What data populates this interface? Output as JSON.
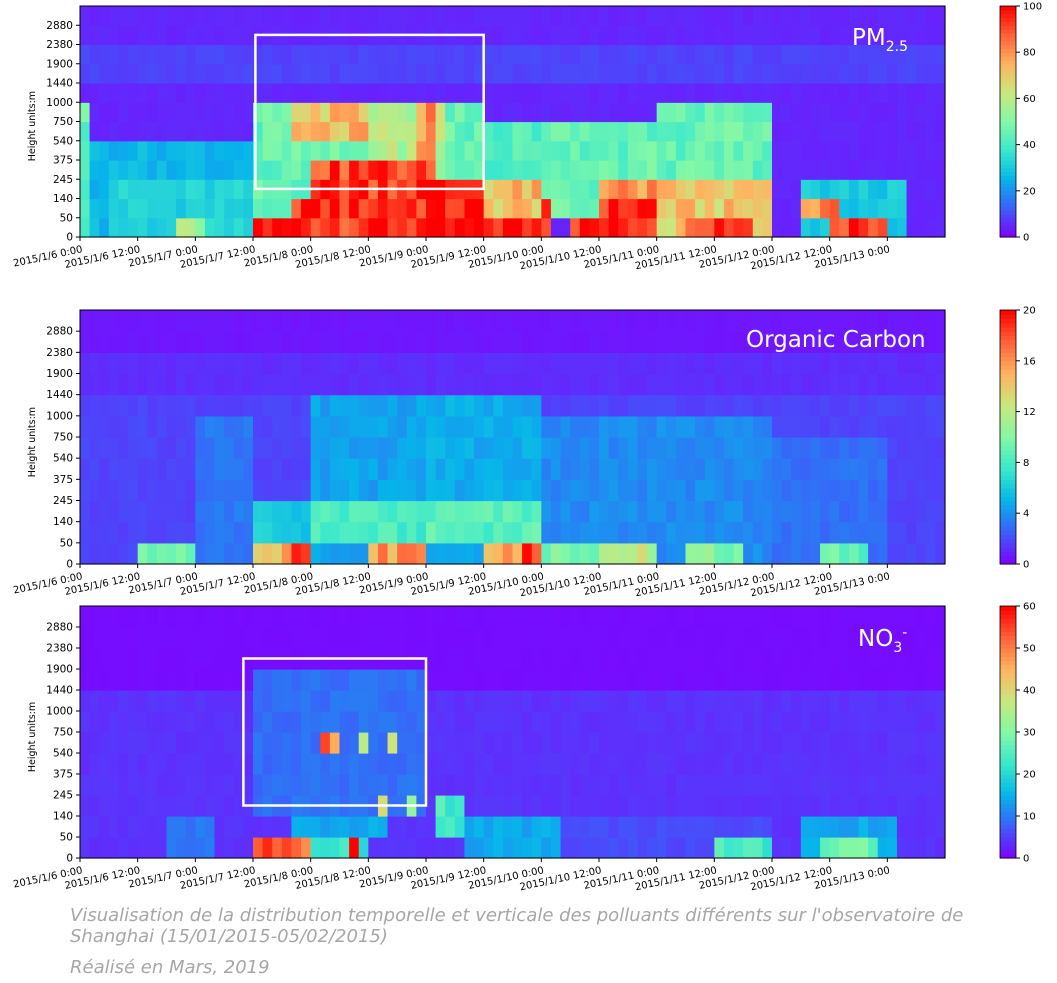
{
  "colors": {
    "colormap": [
      "#7f00ff",
      "#3c5ef9",
      "#07b4ea",
      "#3ae8cc",
      "#84f8a6",
      "#c8e87f",
      "#ffb360",
      "#ff6138",
      "#ff0000"
    ],
    "frame_border": "#000000",
    "highlight_box": "#ffffff",
    "caption": "#a6a6a6"
  },
  "caption": {
    "line1": "Visualisation de la distribution temporelle et verticale des polluants différents sur l'observatoire de Shanghai (15/01/2015-05/02/2015)",
    "line2": "Réalisé en Mars, 2019"
  },
  "chart_data": [
    {
      "type": "heatmap",
      "title": "PM",
      "title_subscript": "2.5",
      "title_superscript": "",
      "ylabel": "Height  units:m",
      "y_levels": [
        "0",
        "50",
        "140",
        "245",
        "375",
        "540",
        "750",
        "1000",
        "1440",
        "1900",
        "2380",
        "2880"
      ],
      "x_ticks": [
        "2015/1/6 0:00",
        "2015/1/6 12:00",
        "2015/1/7 0:00",
        "2015/1/7 12:00",
        "2015/1/8 0:00",
        "2015/1/8 12:00",
        "2015/1/9 0:00",
        "2015/1/9 12:00",
        "2015/1/10 0:00",
        "2015/1/10 12:00",
        "2015/1/11 0:00",
        "2015/1/11 12:00",
        "2015/1/12 0:00",
        "2015/1/12 12:00",
        "2015/1/13 0:00"
      ],
      "x_range": [
        "2015/1/6 0:00",
        "2015/1/13 12:00"
      ],
      "colorbar": {
        "min": 0,
        "max": 100,
        "ticks": [
          0,
          20,
          40,
          60,
          80,
          100
        ]
      },
      "grid": false,
      "highlight_range": {
        "x": [
          "2015/1/7 12:30",
          "2015/1/9 12:00"
        ],
        "y": [
          "140",
          "2380"
        ]
      },
      "background_value": 5,
      "events": [
        {
          "t0": "2015/1/6 0:00",
          "t1": "2015/1/13 12:00",
          "h": [
            8,
            10
          ],
          "v": 9
        },
        {
          "t0": "2015/1/6 0:00",
          "t1": "2015/1/7 12:00",
          "h": [
            0,
            5
          ],
          "v": 26
        },
        {
          "t0": "2015/1/6 0:00",
          "t1": "2015/1/6 2:00",
          "h": [
            0,
            7
          ],
          "v": 45
        },
        {
          "t0": "2015/1/6 6:00",
          "t1": "2015/1/7 12:00",
          "h": [
            0,
            3
          ],
          "v": 32
        },
        {
          "t0": "2015/1/6 20:00",
          "t1": "2015/1/7 2:00",
          "h": [
            0,
            1
          ],
          "v": 55
        },
        {
          "t0": "2015/1/7 12:00",
          "t1": "2015/1/8 0:00",
          "h": [
            0,
            2
          ],
          "v": 40
        },
        {
          "t0": "2015/1/7 12:00",
          "t1": "2015/1/8 0:00",
          "h": [
            0,
            1
          ],
          "v": 98
        },
        {
          "t0": "2015/1/7 20:00",
          "t1": "2015/1/8 0:00",
          "h": [
            1,
            2
          ],
          "v": 98
        },
        {
          "t0": "2015/1/7 12:00",
          "t1": "2015/1/9 12:00",
          "h": [
            2,
            7
          ],
          "v": 45
        },
        {
          "t0": "2015/1/7 20:00",
          "t1": "2015/1/8 12:00",
          "h": [
            5,
            7
          ],
          "v": 72
        },
        {
          "t0": "2015/1/8 0:00",
          "t1": "2015/1/9 12:00",
          "h": [
            0,
            3
          ],
          "v": 96
        },
        {
          "t0": "2015/1/8 0:00",
          "t1": "2015/1/9 0:00",
          "h": [
            3,
            4
          ],
          "v": 92
        },
        {
          "t0": "2015/1/8 12:00",
          "t1": "2015/1/9 4:00",
          "h": [
            3,
            7
          ],
          "v": 58
        },
        {
          "t0": "2015/1/8 22:00",
          "t1": "2015/1/9 2:00",
          "h": [
            3,
            7
          ],
          "v": 78
        },
        {
          "t0": "2015/1/9 12:00",
          "t1": "2015/1/10 0:00",
          "h": [
            0,
            3
          ],
          "v": 72
        },
        {
          "t0": "2015/1/9 12:00",
          "t1": "2015/1/10 0:00",
          "h": [
            0,
            1
          ],
          "v": 97
        },
        {
          "t0": "2015/1/9 12:00",
          "t1": "2015/1/10 0:00",
          "h": [
            3,
            6
          ],
          "v": 42
        },
        {
          "t0": "2015/1/10 0:00",
          "t1": "2015/1/10 2:00",
          "h": [
            0,
            2
          ],
          "v": 98
        },
        {
          "t0": "2015/1/10 0:00",
          "t1": "2015/1/11 0:00",
          "h": [
            1,
            6
          ],
          "v": 45
        },
        {
          "t0": "2015/1/10 6:00",
          "t1": "2015/1/11 0:00",
          "h": [
            0,
            1
          ],
          "v": 97
        },
        {
          "t0": "2015/1/10 12:00",
          "t1": "2015/1/11 0:00",
          "h": [
            1,
            2
          ],
          "v": 97
        },
        {
          "t0": "2015/1/10 12:00",
          "t1": "2015/1/11 0:00",
          "h": [
            2,
            3
          ],
          "v": 78
        },
        {
          "t0": "2015/1/11 0:00",
          "t1": "2015/1/12 0:00",
          "h": [
            0,
            7
          ],
          "v": 45
        },
        {
          "t0": "2015/1/11 0:00",
          "t1": "2015/1/12 0:00",
          "h": [
            0,
            3
          ],
          "v": 70
        },
        {
          "t0": "2015/1/11 6:00",
          "t1": "2015/1/11 20:00",
          "h": [
            0,
            1
          ],
          "v": 97
        },
        {
          "t0": "2015/1/12 6:00",
          "t1": "2015/1/13 4:00",
          "h": [
            0,
            3
          ],
          "v": 30
        },
        {
          "t0": "2015/1/12 6:00",
          "t1": "2015/1/12 14:00",
          "h": [
            1,
            2
          ],
          "v": 80
        },
        {
          "t0": "2015/1/12 12:00",
          "t1": "2015/1/13 0:00",
          "h": [
            0,
            1
          ],
          "v": 96
        }
      ]
    },
    {
      "type": "heatmap",
      "title": "Organic Carbon",
      "title_subscript": "",
      "title_superscript": "",
      "ylabel": "Height  units:m",
      "y_levels": [
        "0",
        "50",
        "140",
        "245",
        "375",
        "540",
        "750",
        "1000",
        "1440",
        "1900",
        "2380",
        "2880"
      ],
      "x_ticks": [
        "2015/1/6 0:00",
        "2015/1/6 12:00",
        "2015/1/7 0:00",
        "2015/1/7 12:00",
        "2015/1/8 0:00",
        "2015/1/8 12:00",
        "2015/1/9 0:00",
        "2015/1/9 12:00",
        "2015/1/10 0:00",
        "2015/1/10 12:00",
        "2015/1/11 0:00",
        "2015/1/11 12:00",
        "2015/1/12 0:00",
        "2015/1/12 12:00",
        "2015/1/13 0:00"
      ],
      "x_range": [
        "2015/1/6 0:00",
        "2015/1/13 12:00"
      ],
      "colorbar": {
        "min": 0,
        "max": 20,
        "ticks": [
          0,
          4,
          8,
          12,
          16,
          20
        ]
      },
      "grid": false,
      "background_value": 0.6,
      "events": [
        {
          "t0": "2015/1/6 0:00",
          "t1": "2015/1/13 12:00",
          "h": [
            0,
            8
          ],
          "v": 1.8
        },
        {
          "t0": "2015/1/6 0:00",
          "t1": "2015/1/13 12:00",
          "h": [
            8,
            10
          ],
          "v": 1.2
        },
        {
          "t0": "2015/1/6 12:00",
          "t1": "2015/1/7 0:00",
          "h": [
            0,
            1
          ],
          "v": 9
        },
        {
          "t0": "2015/1/7 0:00",
          "t1": "2015/1/7 12:00",
          "h": [
            0,
            7
          ],
          "v": 3.2
        },
        {
          "t0": "2015/1/7 12:00",
          "t1": "2015/1/8 0:00",
          "h": [
            0,
            1
          ],
          "v": 15
        },
        {
          "t0": "2015/1/7 12:00",
          "t1": "2015/1/8 0:00",
          "h": [
            1,
            3
          ],
          "v": 6
        },
        {
          "t0": "2015/1/7 20:00",
          "t1": "2015/1/8 0:00",
          "h": [
            0,
            1
          ],
          "v": 19
        },
        {
          "t0": "2015/1/8 0:00",
          "t1": "2015/1/9 0:00",
          "h": [
            0,
            8
          ],
          "v": 4.5
        },
        {
          "t0": "2015/1/8 0:00",
          "t1": "2015/1/9 0:00",
          "h": [
            1,
            3
          ],
          "v": 8
        },
        {
          "t0": "2015/1/8 12:00",
          "t1": "2015/1/9 0:00",
          "h": [
            0,
            1
          ],
          "v": 16
        },
        {
          "t0": "2015/1/8 18:00",
          "t1": "2015/1/8 22:00",
          "h": [
            0,
            1
          ],
          "v": 19
        },
        {
          "t0": "2015/1/9 0:00",
          "t1": "2015/1/10 0:00",
          "h": [
            0,
            8
          ],
          "v": 4.8
        },
        {
          "t0": "2015/1/9 0:00",
          "t1": "2015/1/10 0:00",
          "h": [
            1,
            3
          ],
          "v": 8.5
        },
        {
          "t0": "2015/1/9 12:00",
          "t1": "2015/1/10 0:00",
          "h": [
            0,
            1
          ],
          "v": 16
        },
        {
          "t0": "2015/1/9 20:00",
          "t1": "2015/1/10 0:00",
          "h": [
            0,
            1
          ],
          "v": 19
        },
        {
          "t0": "2015/1/10 0:00",
          "t1": "2015/1/11 0:00",
          "h": [
            0,
            7
          ],
          "v": 3.8
        },
        {
          "t0": "2015/1/10 0:00",
          "t1": "2015/1/11 0:00",
          "h": [
            0,
            1
          ],
          "v": 10
        },
        {
          "t0": "2015/1/10 12:00",
          "t1": "2015/1/10 22:00",
          "h": [
            0,
            1
          ],
          "v": 12
        },
        {
          "t0": "2015/1/11 0:00",
          "t1": "2015/1/12 0:00",
          "h": [
            0,
            7
          ],
          "v": 3.8
        },
        {
          "t0": "2015/1/11 6:00",
          "t1": "2015/1/11 18:00",
          "h": [
            0,
            1
          ],
          "v": 10
        },
        {
          "t0": "2015/1/12 0:00",
          "t1": "2015/1/13 0:00",
          "h": [
            0,
            6
          ],
          "v": 3
        },
        {
          "t0": "2015/1/12 10:00",
          "t1": "2015/1/12 20:00",
          "h": [
            0,
            1
          ],
          "v": 9
        }
      ]
    },
    {
      "type": "heatmap",
      "title": "NO",
      "title_subscript": "3",
      "title_superscript": "-",
      "ylabel": "Height  units:m",
      "y_levels": [
        "0",
        "50",
        "140",
        "245",
        "375",
        "540",
        "750",
        "1000",
        "1440",
        "1900",
        "2380",
        "2880"
      ],
      "x_ticks": [
        "2015/1/6 0:00",
        "2015/1/6 12:00",
        "2015/1/7 0:00",
        "2015/1/7 12:00",
        "2015/1/8 0:00",
        "2015/1/8 12:00",
        "2015/1/9 0:00",
        "2015/1/9 12:00",
        "2015/1/10 0:00",
        "2015/1/10 12:00",
        "2015/1/11 0:00",
        "2015/1/11 12:00",
        "2015/1/12 0:00",
        "2015/1/12 12:00",
        "2015/1/13 0:00"
      ],
      "x_range": [
        "2015/1/6 0:00",
        "2015/1/13 12:00"
      ],
      "colorbar": {
        "min": 0,
        "max": 60,
        "ticks": [
          0,
          10,
          20,
          30,
          40,
          50,
          60
        ]
      },
      "grid": false,
      "highlight_range": {
        "x": [
          "2015/1/7 10:00",
          "2015/1/9 0:00"
        ],
        "y": [
          "140",
          "1900"
        ]
      },
      "background_value": 1,
      "events": [
        {
          "t0": "2015/1/6 0:00",
          "t1": "2015/1/13 12:00",
          "h": [
            0,
            8
          ],
          "v": 4
        },
        {
          "t0": "2015/1/6 18:00",
          "t1": "2015/1/7 4:00",
          "h": [
            0,
            2
          ],
          "v": 10
        },
        {
          "t0": "2015/1/7 12:00",
          "t1": "2015/1/9 0:00",
          "h": [
            2,
            9
          ],
          "v": 9
        },
        {
          "t0": "2015/1/7 12:00",
          "t1": "2015/1/8 0:00",
          "h": [
            0,
            1
          ],
          "v": 50
        },
        {
          "t0": "2015/1/7 14:00",
          "t1": "2015/1/7 22:00",
          "h": [
            0,
            1
          ],
          "v": 58
        },
        {
          "t0": "2015/1/7 20:00",
          "t1": "2015/1/8 16:00",
          "h": [
            1,
            2
          ],
          "v": 14
        },
        {
          "t0": "2015/1/8 0:00",
          "t1": "2015/1/8 12:00",
          "h": [
            0,
            1
          ],
          "v": 22
        },
        {
          "t0": "2015/1/8 2:00",
          "t1": "2015/1/8 4:00",
          "h": [
            5,
            6
          ],
          "v": 55
        },
        {
          "t0": "2015/1/8 4:00",
          "t1": "2015/1/8 6:00",
          "h": [
            5,
            6
          ],
          "v": 42
        },
        {
          "t0": "2015/1/8 6:00",
          "t1": "2015/1/8 7:00",
          "h": [
            6,
            7
          ],
          "v": 40
        },
        {
          "t0": "2015/1/8 10:00",
          "t1": "2015/1/8 12:00",
          "h": [
            5,
            6
          ],
          "v": 36
        },
        {
          "t0": "2015/1/8 16:00",
          "t1": "2015/1/8 18:00",
          "h": [
            5,
            6
          ],
          "v": 42
        },
        {
          "t0": "2015/1/8 14:00",
          "t1": "2015/1/8 16:00",
          "h": [
            2,
            3
          ],
          "v": 38
        },
        {
          "t0": "2015/1/8 20:00",
          "t1": "2015/1/8 22:00",
          "h": [
            2,
            3
          ],
          "v": 36
        },
        {
          "t0": "2015/1/8 8:00",
          "t1": "2015/1/8 10:00",
          "h": [
            0,
            1
          ],
          "v": 58
        },
        {
          "t0": "2015/1/9 2:00",
          "t1": "2015/1/9 8:00",
          "h": [
            1,
            3
          ],
          "v": 24
        },
        {
          "t0": "2015/1/9 8:00",
          "t1": "2015/1/10 4:00",
          "h": [
            0,
            2
          ],
          "v": 14
        },
        {
          "t0": "2015/1/10 0:00",
          "t1": "2015/1/12 0:00",
          "h": [
            0,
            2
          ],
          "v": 6
        },
        {
          "t0": "2015/1/11 12:00",
          "t1": "2015/1/12 0:00",
          "h": [
            0,
            1
          ],
          "v": 24
        },
        {
          "t0": "2015/1/12 6:00",
          "t1": "2015/1/13 2:00",
          "h": [
            0,
            2
          ],
          "v": 14
        },
        {
          "t0": "2015/1/12 10:00",
          "t1": "2015/1/12 22:00",
          "h": [
            0,
            1
          ],
          "v": 28
        }
      ]
    }
  ]
}
